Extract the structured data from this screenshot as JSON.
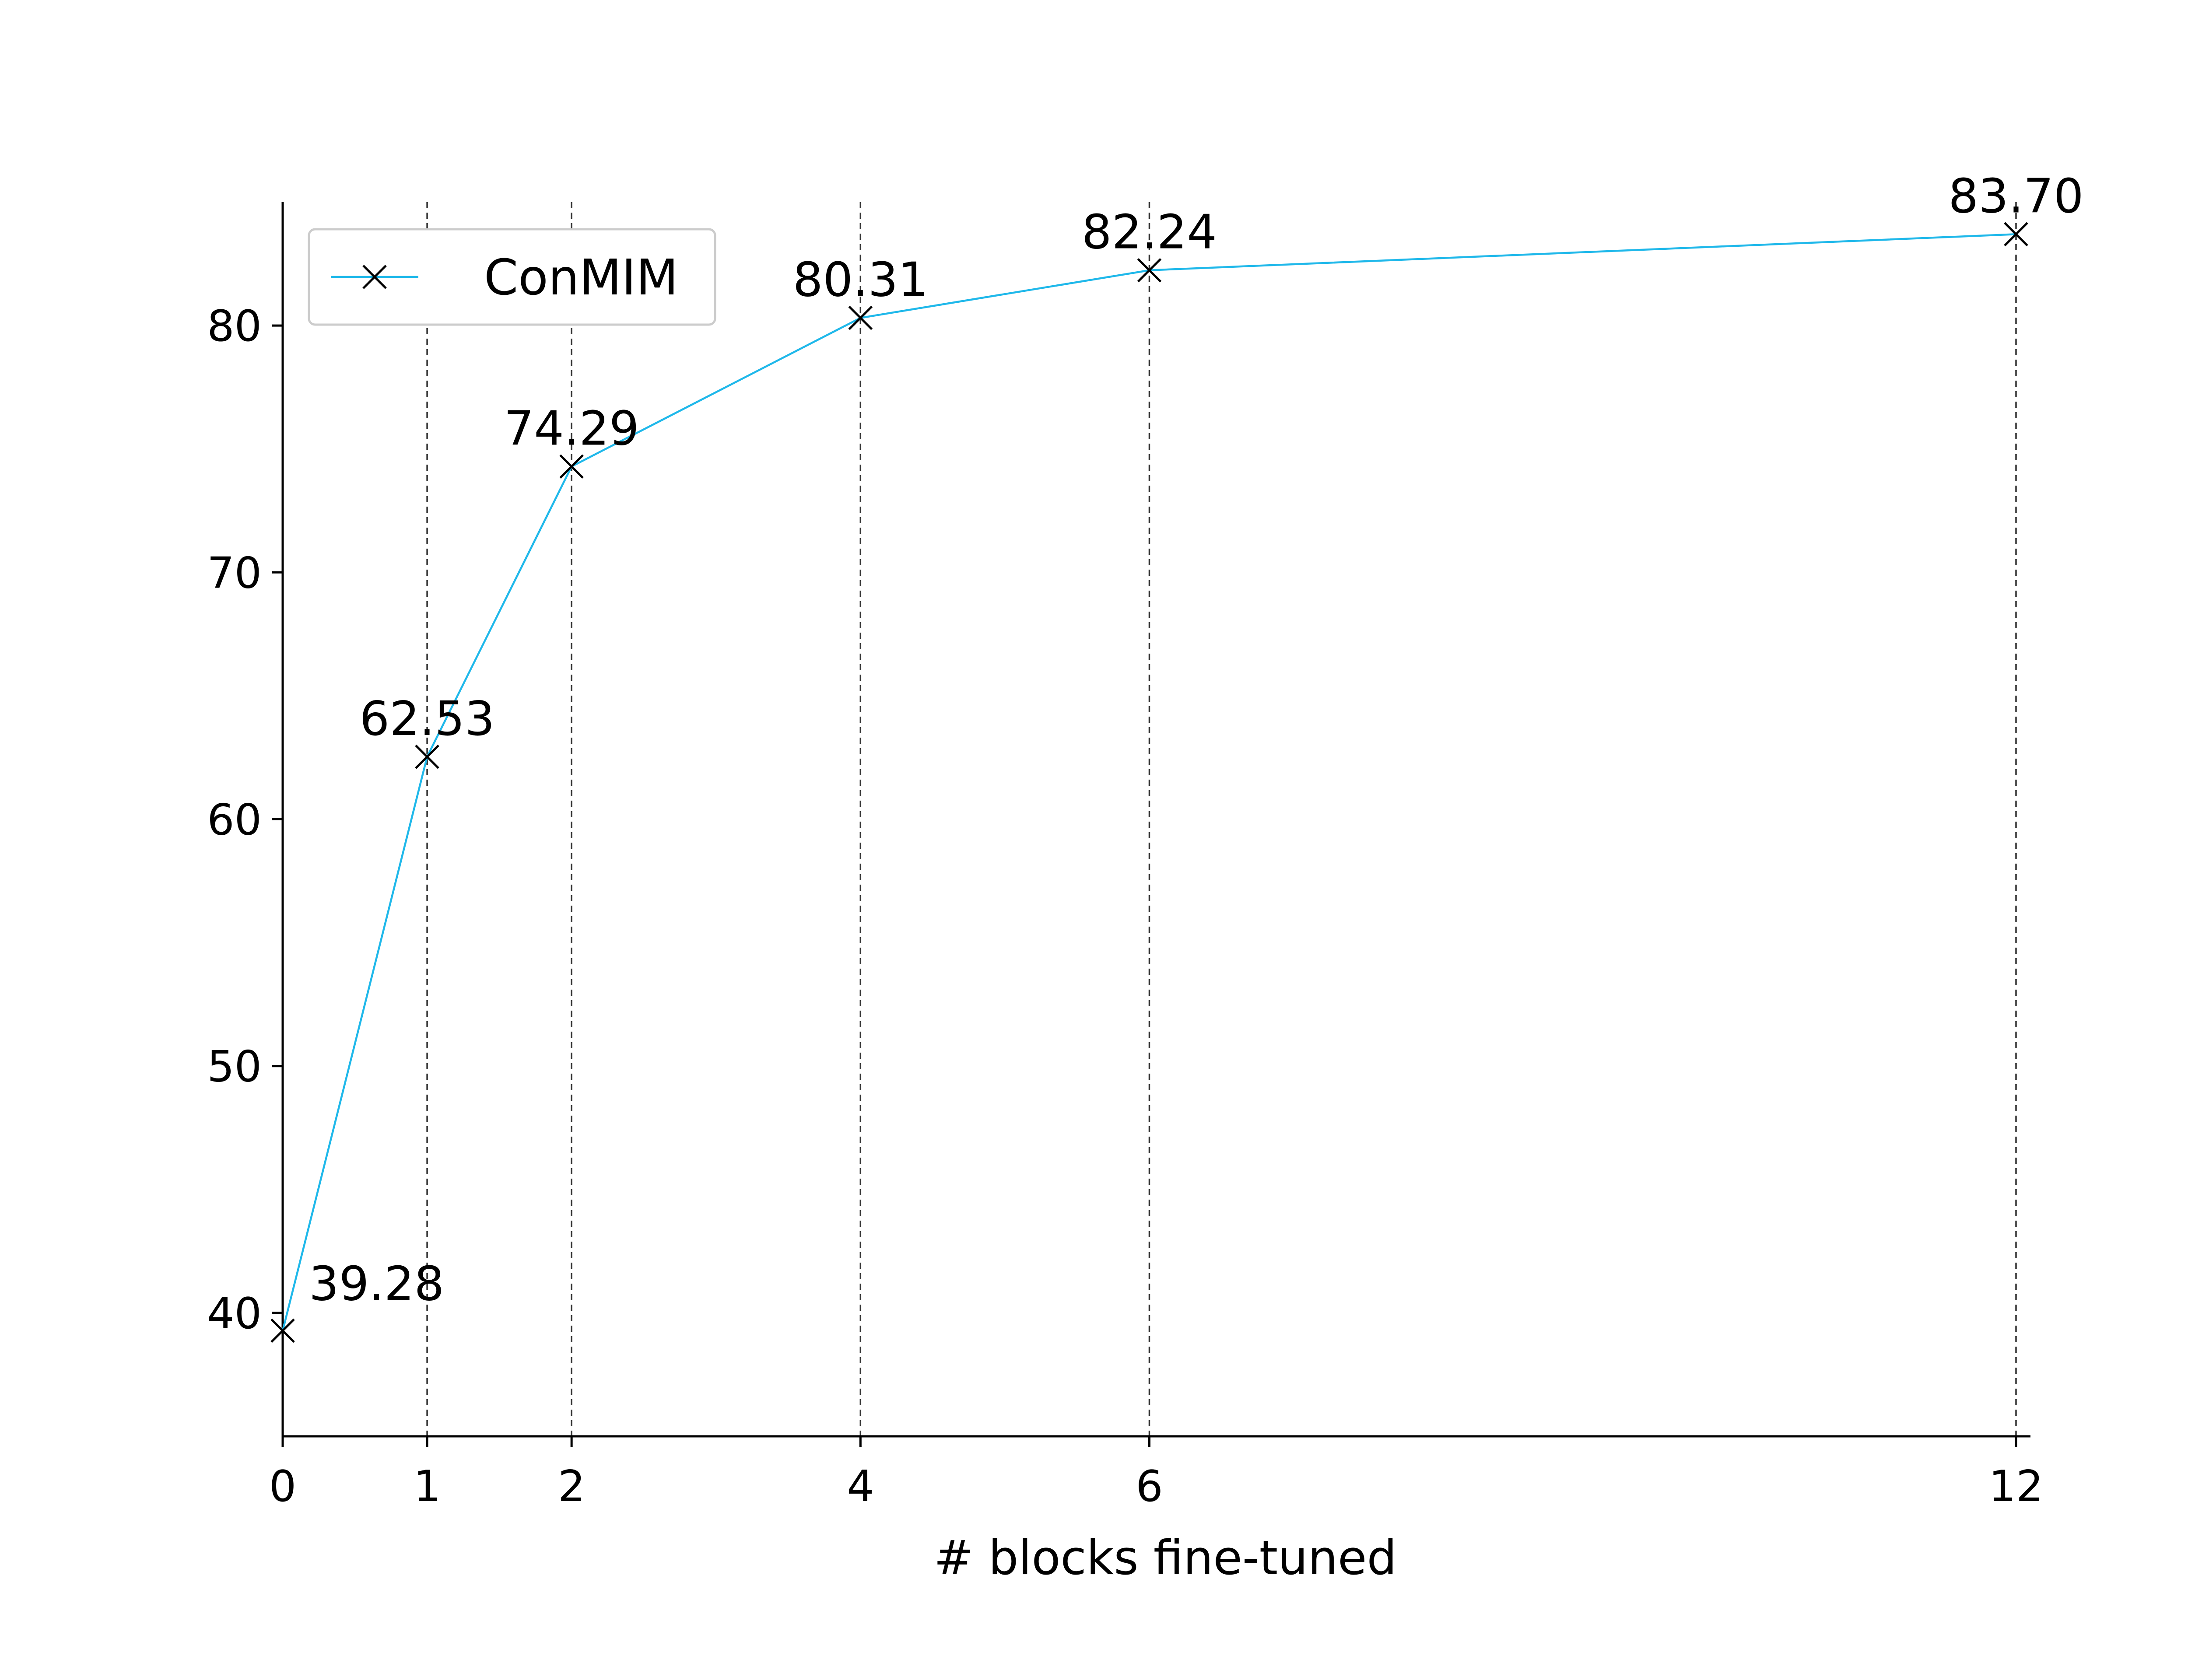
{
  "chart_data": {
    "type": "line",
    "xlabel": "# blocks fine-tuned",
    "ylabel": "",
    "x": [
      0,
      1,
      2,
      4,
      6,
      12
    ],
    "xticks": [
      "0",
      "1",
      "2",
      "4",
      "6",
      "12"
    ],
    "yticks": [
      "40",
      "50",
      "60",
      "70",
      "80"
    ],
    "xlim": [
      0,
      12.1
    ],
    "ylim": [
      35,
      85
    ],
    "series": [
      {
        "name": "ConMIM",
        "values": [
          39.28,
          62.53,
          74.29,
          80.31,
          82.24,
          83.7
        ],
        "labels": [
          "39.28",
          "62.53",
          "74.29",
          "80.31",
          "82.24",
          "83.70"
        ],
        "color": "#1fb8ea",
        "marker": "x"
      }
    ],
    "vertical_gridlines": "dashed at each x tick",
    "legend": {
      "position": "top-left"
    }
  }
}
